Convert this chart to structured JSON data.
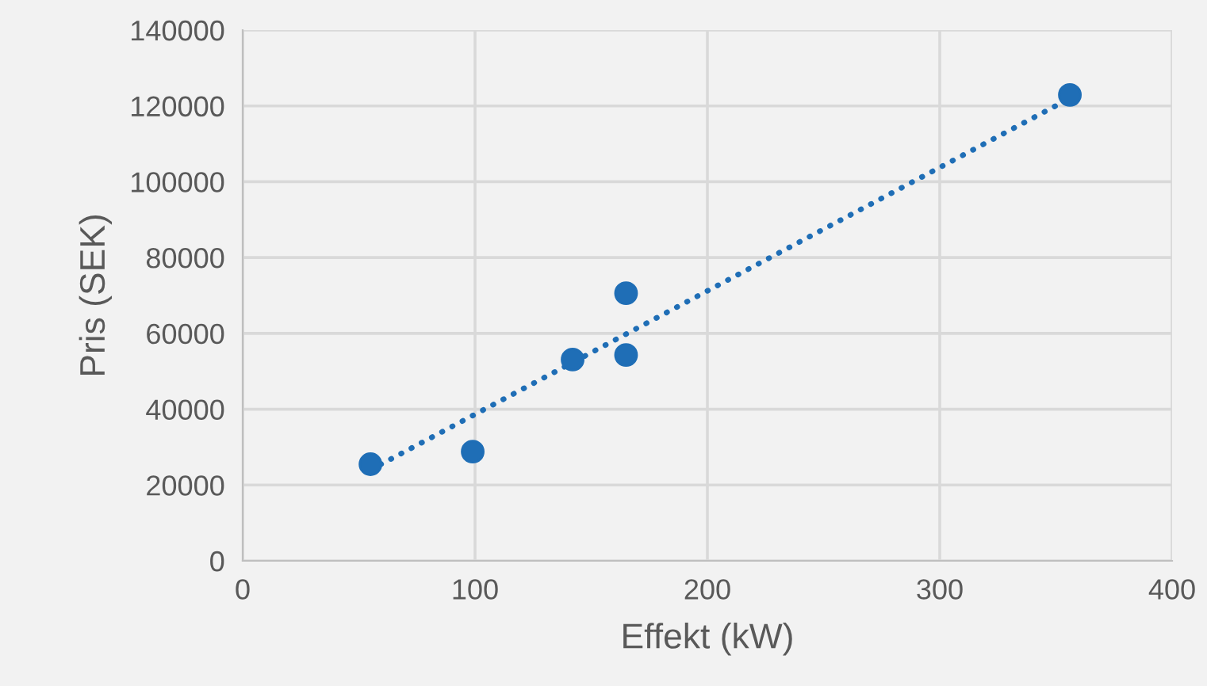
{
  "chart_data": {
    "type": "scatter",
    "xlabel": "Effekt (kW)",
    "ylabel": "Pris (SEK)",
    "xlim": [
      0,
      400
    ],
    "xticks": [
      0,
      100,
      200,
      300,
      400
    ],
    "ylim": [
      0,
      140000
    ],
    "yticks": [
      0,
      20000,
      40000,
      60000,
      80000,
      100000,
      120000,
      140000
    ],
    "grid": true,
    "legend": false,
    "series": [
      {
        "color": "#1f6eb6",
        "marker": "circle",
        "x": [
          55,
          99,
          142,
          165,
          165,
          356
        ],
        "values": [
          25500,
          28800,
          53100,
          70600,
          54300,
          122900
        ]
      },
      {
        "type": "line",
        "color": "#1f6eb6",
        "line_style": "dotted",
        "marker": "none",
        "x": [
          55,
          356
        ],
        "values": [
          24000,
          122000
        ]
      }
    ]
  }
}
